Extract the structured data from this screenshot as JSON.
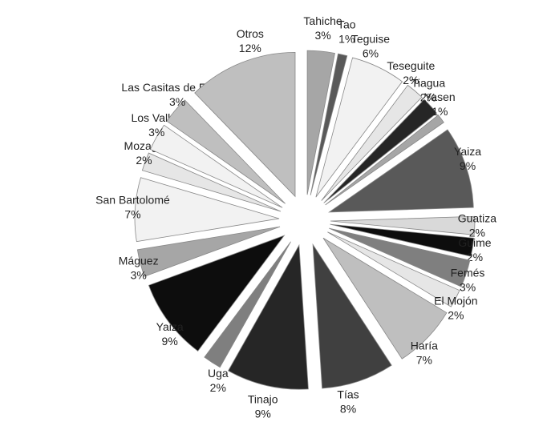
{
  "chart_data": {
    "type": "pie",
    "categories": [
      "Tahiche",
      "Tao",
      "Teguise",
      "Teseguite",
      "Tiagua",
      "Yasen",
      "Yaiza",
      "Guatiza",
      "Guime",
      "Femés",
      "El Mojón",
      "Haría",
      "Tías",
      "Tinajo",
      "Uga",
      "Yaiza",
      "Máguez",
      "San Bartolomé",
      "Mozaga",
      "Los Valles",
      "Las Casitas de Femés",
      "Otros"
    ],
    "values": [
      3,
      1,
      6,
      2,
      2,
      1,
      9,
      2,
      2,
      3,
      2,
      7,
      8,
      9,
      2,
      9,
      3,
      7,
      2,
      3,
      3,
      12
    ],
    "value_labels": [
      "3%",
      "1%",
      "6%",
      "2%",
      "2%",
      "1%",
      "9%",
      "2%",
      "2%",
      "3%",
      "2%",
      "7%",
      "8%",
      "9%",
      "2%",
      "9%",
      "3%",
      "7%",
      "2%",
      "3%",
      "3%",
      "12%"
    ],
    "colors": [
      "#a6a6a6",
      "#595959",
      "#f2f2f2",
      "#e6e6e6",
      "#262626",
      "#a6a6a6",
      "#595959",
      "#d9d9d9",
      "#0d0d0d",
      "#7f7f7f",
      "#e6e6e6",
      "#bfbfbf",
      "#404040",
      "#262626",
      "#7f7f7f",
      "#0d0d0d",
      "#a6a6a6",
      "#f2f2f2",
      "#e6e6e6",
      "#f2f2f2",
      "#bfbfbf",
      "#bfbfbf"
    ]
  }
}
